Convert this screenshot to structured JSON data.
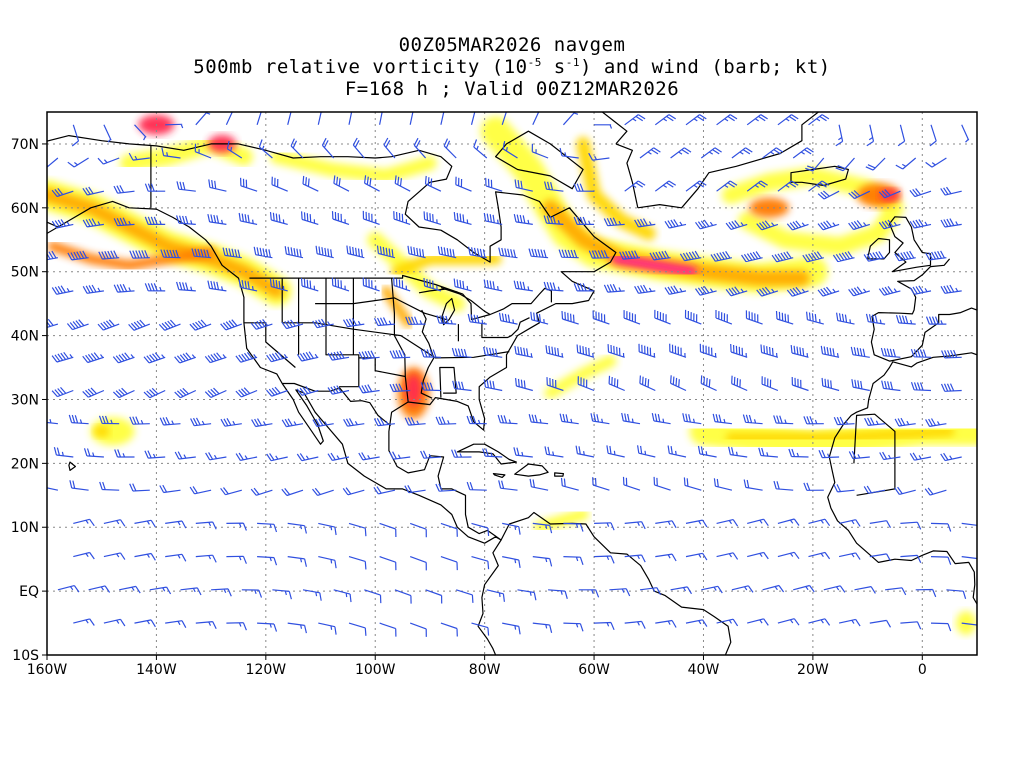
{
  "header": {
    "line1": "00Z05MAR2026 navgem",
    "line2_pre": "500mb relative vorticity (10",
    "line2_exp1": "-5",
    "line2_mid": " s",
    "line2_exp2": "-1",
    "line2_post": ") and wind (barb; kt)",
    "line3": "F=168 h ; Valid 00Z12MAR2026"
  },
  "map": {
    "projection": "cylindrical-equidistant",
    "lon_range": [
      -160,
      10
    ],
    "lat_range": [
      -10,
      75
    ],
    "grid": true,
    "lat_ticks": [
      {
        "value": 70,
        "label": "70N"
      },
      {
        "value": 60,
        "label": "60N"
      },
      {
        "value": 50,
        "label": "50N"
      },
      {
        "value": 40,
        "label": "40N"
      },
      {
        "value": 30,
        "label": "30N"
      },
      {
        "value": 20,
        "label": "20N"
      },
      {
        "value": 10,
        "label": "10N"
      },
      {
        "value": 0,
        "label": "EQ"
      },
      {
        "value": -10,
        "label": "10S"
      }
    ],
    "lon_ticks": [
      {
        "value": -160,
        "label": "160W"
      },
      {
        "value": -140,
        "label": "140W"
      },
      {
        "value": -120,
        "label": "120W"
      },
      {
        "value": -100,
        "label": "100W"
      },
      {
        "value": -80,
        "label": "80W"
      },
      {
        "value": -60,
        "label": "60W"
      },
      {
        "value": -40,
        "label": "40W"
      },
      {
        "value": -20,
        "label": "20W"
      },
      {
        "value": 0,
        "label": "0"
      }
    ],
    "colors": {
      "barb": "#3050e0",
      "vort_low": "#ffff3c",
      "vort_mid1": "#ffd700",
      "vort_mid2": "#ffaa00",
      "vort_mid3": "#ff7a00",
      "vort_high": "#ff2a50",
      "vort_max": "#ff1493",
      "coast": "#000000",
      "grid": "#888888"
    }
  }
}
